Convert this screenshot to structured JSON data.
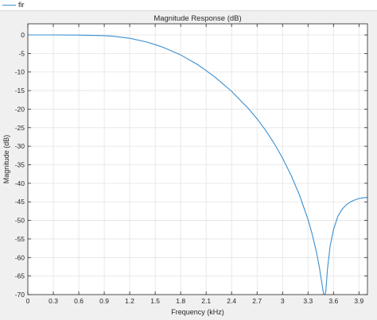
{
  "legend": {
    "entries": [
      {
        "name": "fir",
        "color": "#3a8fd0"
      }
    ]
  },
  "chart_data": {
    "type": "line",
    "title": "Magnitude Response (dB)",
    "xlabel": "Frequency (kHz)",
    "ylabel": "Magnitude (dB)",
    "xlim": [
      0,
      4.0
    ],
    "ylim": [
      -70,
      3
    ],
    "xticks": [
      0,
      0.3,
      0.6,
      0.9,
      1.2,
      1.5,
      1.8,
      2.1,
      2.4,
      2.7,
      3,
      3.3,
      3.6,
      3.9
    ],
    "xtick_labels": [
      "0",
      "0.3",
      "0.6",
      "0.9",
      "1.2",
      "1.5",
      "1.8",
      "2.1",
      "2.4",
      "2.7",
      "3",
      "3.3",
      "3.6",
      "3.9"
    ],
    "yticks": [
      0,
      -5,
      -10,
      -15,
      -20,
      -25,
      -30,
      -35,
      -40,
      -45,
      -50,
      -55,
      -60,
      -65,
      -70
    ],
    "ytick_labels": [
      "0",
      "-5",
      "-10",
      "-15",
      "-20",
      "-25",
      "-30",
      "-35",
      "-40",
      "-45",
      "-50",
      "-55",
      "-60",
      "-65",
      "-70"
    ],
    "grid": true,
    "legend_position": "top-left",
    "series": [
      {
        "name": "fir",
        "color": "#3a8fd0",
        "x": [
          0,
          0.3,
          0.6,
          0.9,
          1.0,
          1.2,
          1.4,
          1.5,
          1.6,
          1.8,
          2.0,
          2.1,
          2.2,
          2.4,
          2.6,
          2.7,
          2.8,
          2.9,
          3.0,
          3.1,
          3.2,
          3.3,
          3.35,
          3.4,
          3.43,
          3.46,
          3.48,
          3.49,
          3.5,
          3.51,
          3.53,
          3.56,
          3.6,
          3.65,
          3.7,
          3.75,
          3.8,
          3.85,
          3.9,
          3.95,
          4.0
        ],
        "y": [
          0,
          0,
          -0.05,
          -0.2,
          -0.35,
          -0.9,
          -1.9,
          -2.6,
          -3.4,
          -5.4,
          -8.0,
          -9.6,
          -11.3,
          -15.2,
          -19.9,
          -22.6,
          -25.7,
          -29.2,
          -33.2,
          -37.8,
          -43.2,
          -49.8,
          -53.8,
          -58.6,
          -62.2,
          -66.5,
          -69.5,
          -71,
          -71,
          -69,
          -63,
          -57,
          -52.5,
          -49,
          -47,
          -45.8,
          -45.0,
          -44.5,
          -44.1,
          -43.9,
          -43.8
        ]
      }
    ]
  }
}
